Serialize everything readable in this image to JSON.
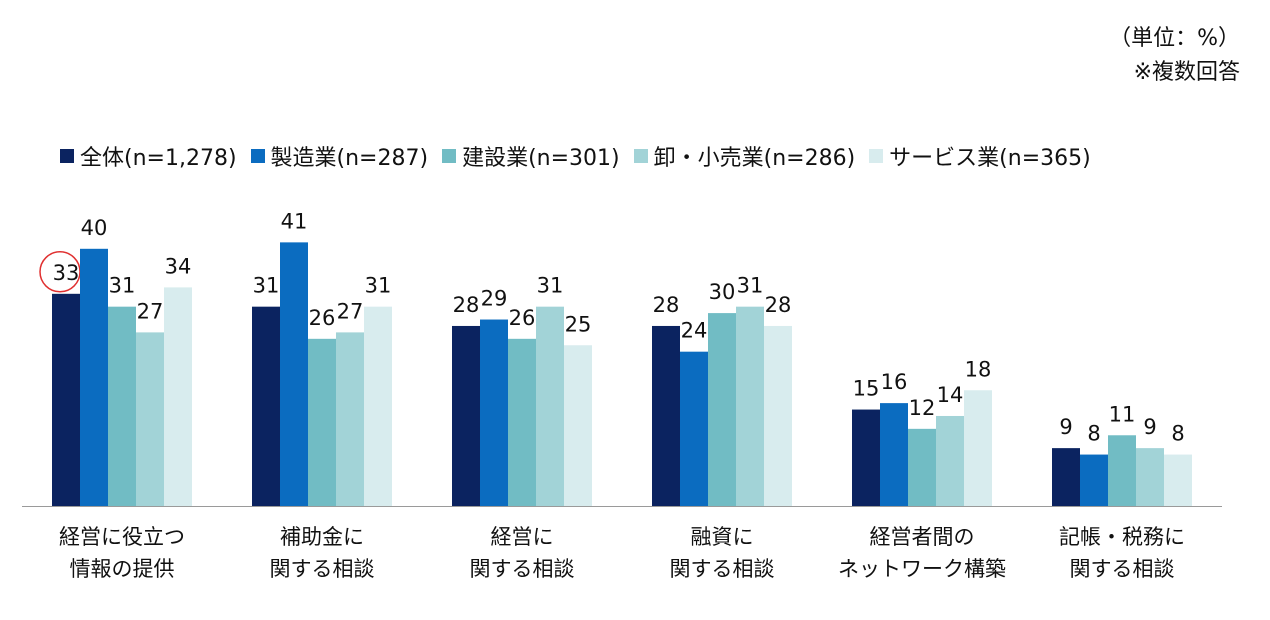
{
  "unit_note": "（単位：%）",
  "multi_note": "※複数回答",
  "colors": [
    "#0b2360",
    "#0b6cc0",
    "#71bcc4",
    "#a2d3d7",
    "#d8ecee"
  ],
  "chart_data": {
    "type": "bar",
    "title": "",
    "xlabel": "",
    "ylabel": "",
    "ylim": [
      0,
      45
    ],
    "legend_position": "top",
    "categories": [
      [
        "経営に役立つ",
        "情報の提供"
      ],
      [
        "補助金に",
        "関する相談"
      ],
      [
        "経営に",
        "関する相談"
      ],
      [
        "融資に",
        "関する相談"
      ],
      [
        "経営者間の",
        "ネットワーク構築"
      ],
      [
        "記帳・税務に",
        "関する相談"
      ]
    ],
    "series": [
      {
        "name": "全体(n=1,278)",
        "values": [
          33,
          31,
          28,
          28,
          15,
          9
        ]
      },
      {
        "name": "製造業(n=287)",
        "values": [
          40,
          41,
          29,
          24,
          16,
          8
        ]
      },
      {
        "name": "建設業(n=301)",
        "values": [
          31,
          26,
          26,
          30,
          12,
          11
        ]
      },
      {
        "name": "卸・小売業(n=286)",
        "values": [
          27,
          27,
          31,
          31,
          14,
          9
        ]
      },
      {
        "name": "サービス業(n=365)",
        "values": [
          34,
          31,
          25,
          28,
          18,
          8
        ]
      }
    ],
    "highlight": {
      "series": 0,
      "category": 0
    }
  }
}
